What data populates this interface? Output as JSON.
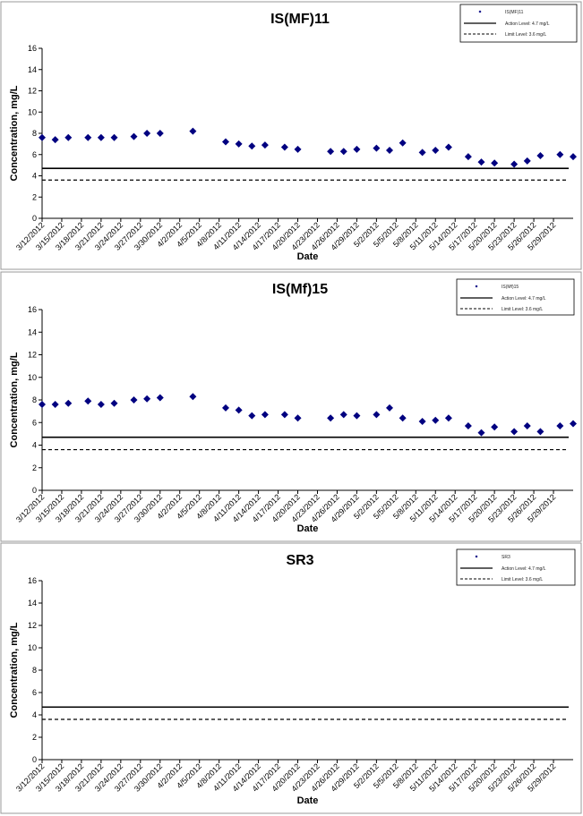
{
  "colors": {
    "marker": "#000080",
    "action_line": "#000000",
    "limit_line": "#000000",
    "panel_border": "#999999"
  },
  "chart_data": [
    {
      "type": "scatter",
      "title": "IS(MF)11",
      "xlabel": "Date",
      "ylabel": "Concentration, mg/L",
      "ylim": [
        0,
        16
      ],
      "yticks": [
        0,
        2,
        4,
        6,
        8,
        10,
        12,
        14,
        16
      ],
      "x_tick_labels": [
        "3/12/2012",
        "3/15/2012",
        "3/18/2012",
        "3/21/2012",
        "3/24/2012",
        "3/27/2012",
        "3/30/2012",
        "4/2/2012",
        "4/5/2012",
        "4/8/2012",
        "4/11/2012",
        "4/14/2012",
        "4/17/2012",
        "4/20/2012",
        "4/23/2012",
        "4/26/2012",
        "4/29/2012",
        "5/2/2012",
        "5/5/2012",
        "5/8/2012",
        "5/11/2012",
        "5/14/2012",
        "5/17/2012",
        "5/20/2012",
        "5/23/2012",
        "5/26/2012",
        "5/29/2012"
      ],
      "legend": {
        "position": "top-right",
        "series_label": "IS(MF)11",
        "action_label": "Action Level: 4.7 mg/L",
        "limit_label": "Limit Level: 3.6 mg/L"
      },
      "action_level": 4.7,
      "limit_level": 3.6,
      "series": [
        {
          "name": "IS(MF)11",
          "points": [
            {
              "x": "3/12/2012",
              "y": 7.6
            },
            {
              "x": "3/14/2012",
              "y": 7.4
            },
            {
              "x": "3/16/2012",
              "y": 7.6
            },
            {
              "x": "3/19/2012",
              "y": 7.6
            },
            {
              "x": "3/21/2012",
              "y": 7.6
            },
            {
              "x": "3/23/2012",
              "y": 7.6
            },
            {
              "x": "3/26/2012",
              "y": 7.7
            },
            {
              "x": "3/28/2012",
              "y": 8.0
            },
            {
              "x": "3/30/2012",
              "y": 8.0
            },
            {
              "x": "4/4/2012",
              "y": 8.2
            },
            {
              "x": "4/9/2012",
              "y": 7.2
            },
            {
              "x": "4/11/2012",
              "y": 7.0
            },
            {
              "x": "4/13/2012",
              "y": 6.8
            },
            {
              "x": "4/15/2012",
              "y": 6.9
            },
            {
              "x": "4/18/2012",
              "y": 6.7
            },
            {
              "x": "4/20/2012",
              "y": 6.5
            },
            {
              "x": "4/25/2012",
              "y": 6.3
            },
            {
              "x": "4/27/2012",
              "y": 6.3
            },
            {
              "x": "4/29/2012",
              "y": 6.5
            },
            {
              "x": "5/2/2012",
              "y": 6.6
            },
            {
              "x": "5/4/2012",
              "y": 6.4
            },
            {
              "x": "5/6/2012",
              "y": 7.1
            },
            {
              "x": "5/9/2012",
              "y": 6.2
            },
            {
              "x": "5/11/2012",
              "y": 6.4
            },
            {
              "x": "5/13/2012",
              "y": 6.7
            },
            {
              "x": "5/16/2012",
              "y": 5.8
            },
            {
              "x": "5/18/2012",
              "y": 5.3
            },
            {
              "x": "5/20/2012",
              "y": 5.2
            },
            {
              "x": "5/23/2012",
              "y": 5.1
            },
            {
              "x": "5/25/2012",
              "y": 5.4
            },
            {
              "x": "5/27/2012",
              "y": 5.9
            },
            {
              "x": "5/30/2012",
              "y": 6.0
            },
            {
              "x": "6/1/2012",
              "y": 5.8
            }
          ]
        }
      ]
    },
    {
      "type": "scatter",
      "title": "IS(Mf)15",
      "xlabel": "Date",
      "ylabel": "Concentration, mg/L",
      "ylim": [
        0,
        16
      ],
      "yticks": [
        0,
        2,
        4,
        6,
        8,
        10,
        12,
        14,
        16
      ],
      "x_tick_labels": [
        "3/12/2012",
        "3/15/2012",
        "3/18/2012",
        "3/21/2012",
        "3/24/2012",
        "3/27/2012",
        "3/30/2012",
        "4/2/2012",
        "4/5/2012",
        "4/8/2012",
        "4/11/2012",
        "4/14/2012",
        "4/17/2012",
        "4/20/2012",
        "4/23/2012",
        "4/26/2012",
        "4/29/2012",
        "5/2/2012",
        "5/5/2012",
        "5/8/2012",
        "5/11/2012",
        "5/14/2012",
        "5/17/2012",
        "5/20/2012",
        "5/23/2012",
        "5/26/2012",
        "5/29/2012"
      ],
      "legend": {
        "position": "top-right",
        "series_label": "IS(Mf)15",
        "action_label": "Action Level: 4.7 mg/L",
        "limit_label": "Limit Level: 3.6 mg/L"
      },
      "action_level": 4.7,
      "limit_level": 3.6,
      "series": [
        {
          "name": "IS(Mf)15",
          "points": [
            {
              "x": "3/12/2012",
              "y": 7.6
            },
            {
              "x": "3/14/2012",
              "y": 7.6
            },
            {
              "x": "3/16/2012",
              "y": 7.7
            },
            {
              "x": "3/19/2012",
              "y": 7.9
            },
            {
              "x": "3/21/2012",
              "y": 7.6
            },
            {
              "x": "3/23/2012",
              "y": 7.7
            },
            {
              "x": "3/26/2012",
              "y": 8.0
            },
            {
              "x": "3/28/2012",
              "y": 8.1
            },
            {
              "x": "3/30/2012",
              "y": 8.2
            },
            {
              "x": "4/4/2012",
              "y": 8.3
            },
            {
              "x": "4/9/2012",
              "y": 7.3
            },
            {
              "x": "4/11/2012",
              "y": 7.1
            },
            {
              "x": "4/13/2012",
              "y": 6.6
            },
            {
              "x": "4/15/2012",
              "y": 6.7
            },
            {
              "x": "4/18/2012",
              "y": 6.7
            },
            {
              "x": "4/20/2012",
              "y": 6.4
            },
            {
              "x": "4/25/2012",
              "y": 6.4
            },
            {
              "x": "4/27/2012",
              "y": 6.7
            },
            {
              "x": "4/29/2012",
              "y": 6.6
            },
            {
              "x": "5/2/2012",
              "y": 6.7
            },
            {
              "x": "5/4/2012",
              "y": 7.3
            },
            {
              "x": "5/6/2012",
              "y": 6.4
            },
            {
              "x": "5/9/2012",
              "y": 6.1
            },
            {
              "x": "5/11/2012",
              "y": 6.2
            },
            {
              "x": "5/13/2012",
              "y": 6.4
            },
            {
              "x": "5/16/2012",
              "y": 5.7
            },
            {
              "x": "5/18/2012",
              "y": 5.1
            },
            {
              "x": "5/20/2012",
              "y": 5.6
            },
            {
              "x": "5/23/2012",
              "y": 5.2
            },
            {
              "x": "5/25/2012",
              "y": 5.7
            },
            {
              "x": "5/27/2012",
              "y": 5.2
            },
            {
              "x": "5/30/2012",
              "y": 5.7
            },
            {
              "x": "6/1/2012",
              "y": 5.9
            }
          ]
        }
      ]
    },
    {
      "type": "scatter",
      "title": "SR3",
      "xlabel": "Date",
      "ylabel": "Concentration, mg/L",
      "ylim": [
        0,
        16
      ],
      "yticks": [
        0,
        2,
        4,
        6,
        8,
        10,
        12,
        14,
        16
      ],
      "x_tick_labels": [
        "3/12/2012",
        "3/15/2012",
        "3/18/2012",
        "3/21/2012",
        "3/24/2012",
        "3/27/2012",
        "3/30/2012",
        "4/2/2012",
        "4/5/2012",
        "4/8/2012",
        "4/11/2012",
        "4/14/2012",
        "4/17/2012",
        "4/20/2012",
        "4/23/2012",
        "4/26/2012",
        "4/29/2012",
        "5/2/2012",
        "5/5/2012",
        "5/8/2012",
        "5/11/2012",
        "5/14/2012",
        "5/17/2012",
        "5/20/2012",
        "5/23/2012",
        "5/26/2012",
        "5/29/2012"
      ],
      "legend": {
        "position": "top-right",
        "series_label": "SR3",
        "action_label": "Action Level: 4.7 mg/L",
        "limit_label": "Limit Level: 3.6 mg/L"
      },
      "action_level": 4.7,
      "limit_level": 3.6,
      "series": [
        {
          "name": "SR3",
          "points": []
        }
      ]
    }
  ]
}
